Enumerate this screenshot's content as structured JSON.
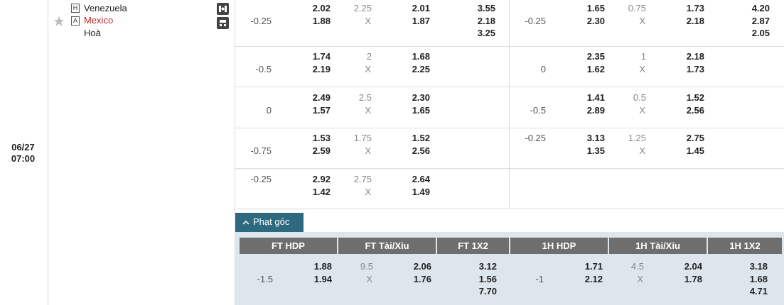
{
  "match": {
    "date": "06/27",
    "time": "07:00",
    "home_badge": "H",
    "home": "Venezuela",
    "away_badge": "A",
    "away": "Mexico",
    "draw": "Hoà"
  },
  "odds_rows": [
    {
      "ft": {
        "hdp": "-0.25",
        "hdp_home": "2.02",
        "hdp_away": "1.88",
        "total": "2.25",
        "total_mark": "X",
        "over": "2.01",
        "under": "1.87",
        "x12": [
          "3.55",
          "2.18",
          "3.25"
        ]
      },
      "h1": {
        "hdp": "-0.25",
        "hdp_home": "1.65",
        "hdp_away": "2.30",
        "total": "0.75",
        "total_mark": "X",
        "over": "1.73",
        "under": "2.18",
        "x12": [
          "4.20",
          "2.87",
          "2.05"
        ]
      }
    },
    {
      "ft": {
        "hdp": "-0.5",
        "hdp_home": "1.74",
        "hdp_away": "2.19",
        "total": "2",
        "total_mark": "X",
        "over": "1.68",
        "under": "2.25"
      },
      "h1": {
        "hdp": "0",
        "hdp_home": "2.35",
        "hdp_away": "1.62",
        "total": "1",
        "total_mark": "X",
        "over": "2.18",
        "under": "1.73"
      }
    },
    {
      "ft": {
        "hdp": "0",
        "hdp_home": "2.49",
        "hdp_away": "1.57",
        "total": "2.5",
        "total_mark": "X",
        "over": "2.30",
        "under": "1.65"
      },
      "h1": {
        "hdp": "-0.5",
        "hdp_home": "1.41",
        "hdp_away": "2.89",
        "total": "0.5",
        "total_mark": "X",
        "over": "1.52",
        "under": "2.56"
      }
    },
    {
      "ft": {
        "hdp": "-0.75",
        "hdp_home": "1.53",
        "hdp_away": "2.59",
        "total": "1.75",
        "total_mark": "X",
        "over": "1.52",
        "under": "2.56"
      },
      "h1": {
        "hdp": "-0.25",
        "hdp_home": "3.13",
        "hdp_away": "1.35",
        "total": "1.25",
        "total_mark": "X",
        "over": "2.75",
        "under": "1.45"
      }
    },
    {
      "ft": {
        "hdp": "-0.25",
        "hdp_home": "2.92",
        "hdp_away": "1.42",
        "total": "2.75",
        "total_mark": "X",
        "over": "2.64",
        "under": "1.49"
      }
    }
  ],
  "corners": {
    "tab": "Phạt góc",
    "headers": [
      "FT HDP",
      "FT Tài/Xỉu",
      "FT 1X2",
      "1H HDP",
      "1H Tài/Xỉu",
      "1H 1X2"
    ],
    "ft": {
      "hdp": "-1.5",
      "hdp_home": "1.88",
      "hdp_away": "1.94",
      "total": "9.5",
      "total_mark": "X",
      "over": "2.06",
      "under": "1.76",
      "x12": [
        "3.12",
        "1.56",
        "7.70"
      ]
    },
    "h1": {
      "hdp": "-1",
      "hdp_home": "1.71",
      "hdp_away": "2.12",
      "total": "4.5",
      "total_mark": "X",
      "over": "2.04",
      "under": "1.78",
      "x12": [
        "3.18",
        "1.68",
        "4.71"
      ]
    }
  }
}
